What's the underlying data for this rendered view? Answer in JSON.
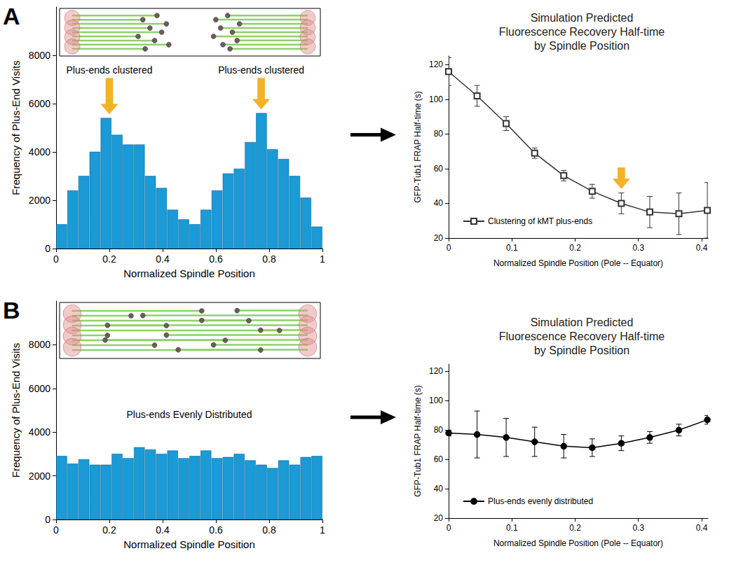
{
  "chart_data": [
    {
      "panel": "A",
      "type": "histogram",
      "xlabel": "Normalized Spindle Position",
      "ylabel": "Frequency of Plus-End Visits",
      "bins": [
        0,
        0.0417,
        0.0833,
        0.125,
        0.1667,
        0.2083,
        0.25,
        0.2917,
        0.3333,
        0.375,
        0.4167,
        0.4583,
        0.5,
        0.5417,
        0.5833,
        0.625,
        0.6667,
        0.7083,
        0.75,
        0.7917,
        0.8333,
        0.875,
        0.9167,
        0.9583,
        1
      ],
      "counts": [
        1000,
        2400,
        3000,
        4000,
        5400,
        4700,
        4300,
        4300,
        3000,
        2500,
        1600,
        1200,
        1000,
        1600,
        2400,
        3100,
        3300,
        4400,
        5600,
        4100,
        3700,
        3000,
        2100,
        900
      ],
      "color": "#1a9ad6",
      "xlim": [
        0,
        1
      ],
      "xticks": [
        0,
        0.2,
        0.4,
        0.6,
        0.8,
        1
      ],
      "ylim": [
        0,
        10000
      ],
      "yticks": [
        0,
        2000,
        4000,
        6000,
        8000
      ],
      "grid": false,
      "annotations": [
        {
          "text": "Plus-ends clustered",
          "x": 0.2,
          "y": 7400
        },
        {
          "text": "Plus-ends clustered",
          "x": 0.77,
          "y": 7400
        }
      ],
      "arrows": [
        0.2,
        0.77
      ]
    },
    {
      "type": "line",
      "title": "Simulation Predicted Fluorescence Recovery Half-time by Spindle Position",
      "xlabel": "Normalized Spindle Position (Pole -- Equator)",
      "ylabel": "GFP-Tub1 FRAP Half-time (s)",
      "x": [
        0,
        0.045,
        0.091,
        0.136,
        0.182,
        0.227,
        0.273,
        0.318,
        0.364,
        0.409
      ],
      "series": [
        {
          "name": "Clustering of kMT plus-ends",
          "color": "#333333",
          "marker": "open square",
          "values": [
            116,
            102,
            86,
            69,
            56,
            47,
            40,
            35,
            34,
            36
          ],
          "errors": [
            8,
            6,
            4,
            3,
            3,
            4,
            6,
            9,
            12,
            16
          ]
        }
      ],
      "xlim": [
        0,
        0.41
      ],
      "xticks": [
        0,
        0.1,
        0.2,
        0.3,
        0.4
      ],
      "ylim": [
        20,
        125
      ],
      "yticks": [
        20,
        40,
        60,
        80,
        100,
        120
      ],
      "grid": false,
      "legend": "lower left",
      "arrows": [
        0.273
      ]
    },
    {
      "panel": "B",
      "type": "histogram",
      "xlabel": "Normalized Spindle Position",
      "ylabel": "Frequency of Plus-End Visits",
      "bins": [
        0,
        0.0417,
        0.0833,
        0.125,
        0.1667,
        0.2083,
        0.25,
        0.2917,
        0.3333,
        0.375,
        0.4167,
        0.4583,
        0.5,
        0.5417,
        0.5833,
        0.625,
        0.6667,
        0.7083,
        0.75,
        0.7917,
        0.8333,
        0.875,
        0.9167,
        0.9583,
        1
      ],
      "counts": [
        2900,
        2550,
        2750,
        2500,
        2500,
        3000,
        2800,
        3300,
        3200,
        3000,
        3150,
        2800,
        2900,
        3150,
        2800,
        2850,
        3000,
        2700,
        2500,
        2350,
        2700,
        2500,
        2850,
        2900
      ],
      "color": "#1a9ad6",
      "xlim": [
        0,
        1
      ],
      "xticks": [
        0,
        0.2,
        0.4,
        0.6,
        0.8,
        1
      ],
      "ylim": [
        0,
        10000
      ],
      "yticks": [
        0,
        2000,
        4000,
        6000,
        8000
      ],
      "grid": false,
      "annotations": [
        {
          "text": "Plus-ends Evenly Distributed",
          "x": 0.5,
          "y": 4800
        }
      ]
    },
    {
      "type": "line",
      "title": "Simulation Predicted Fluorescence Recovery Half-time by Spindle Position",
      "xlabel": "Normalized Spindle Position (Pole -- Equator)",
      "ylabel": "GFP-Tub1 FRAP Half-time (s)",
      "x": [
        0,
        0.045,
        0.091,
        0.136,
        0.182,
        0.227,
        0.273,
        0.318,
        0.364,
        0.409
      ],
      "series": [
        {
          "name": "Plus-ends evenly distributed",
          "color": "#000000",
          "marker": "filled circle",
          "values": [
            78,
            77,
            75,
            72,
            69,
            68,
            71,
            75,
            80,
            87
          ],
          "errors": [
            2,
            16,
            13,
            10,
            8,
            6,
            5,
            4,
            4,
            3
          ]
        }
      ],
      "xlim": [
        0,
        0.41
      ],
      "xticks": [
        0,
        0.1,
        0.2,
        0.3,
        0.4
      ],
      "ylim": [
        20,
        125
      ],
      "yticks": [
        20,
        40,
        60,
        80,
        100,
        120
      ],
      "grid": false,
      "legend": "lower left"
    }
  ]
}
